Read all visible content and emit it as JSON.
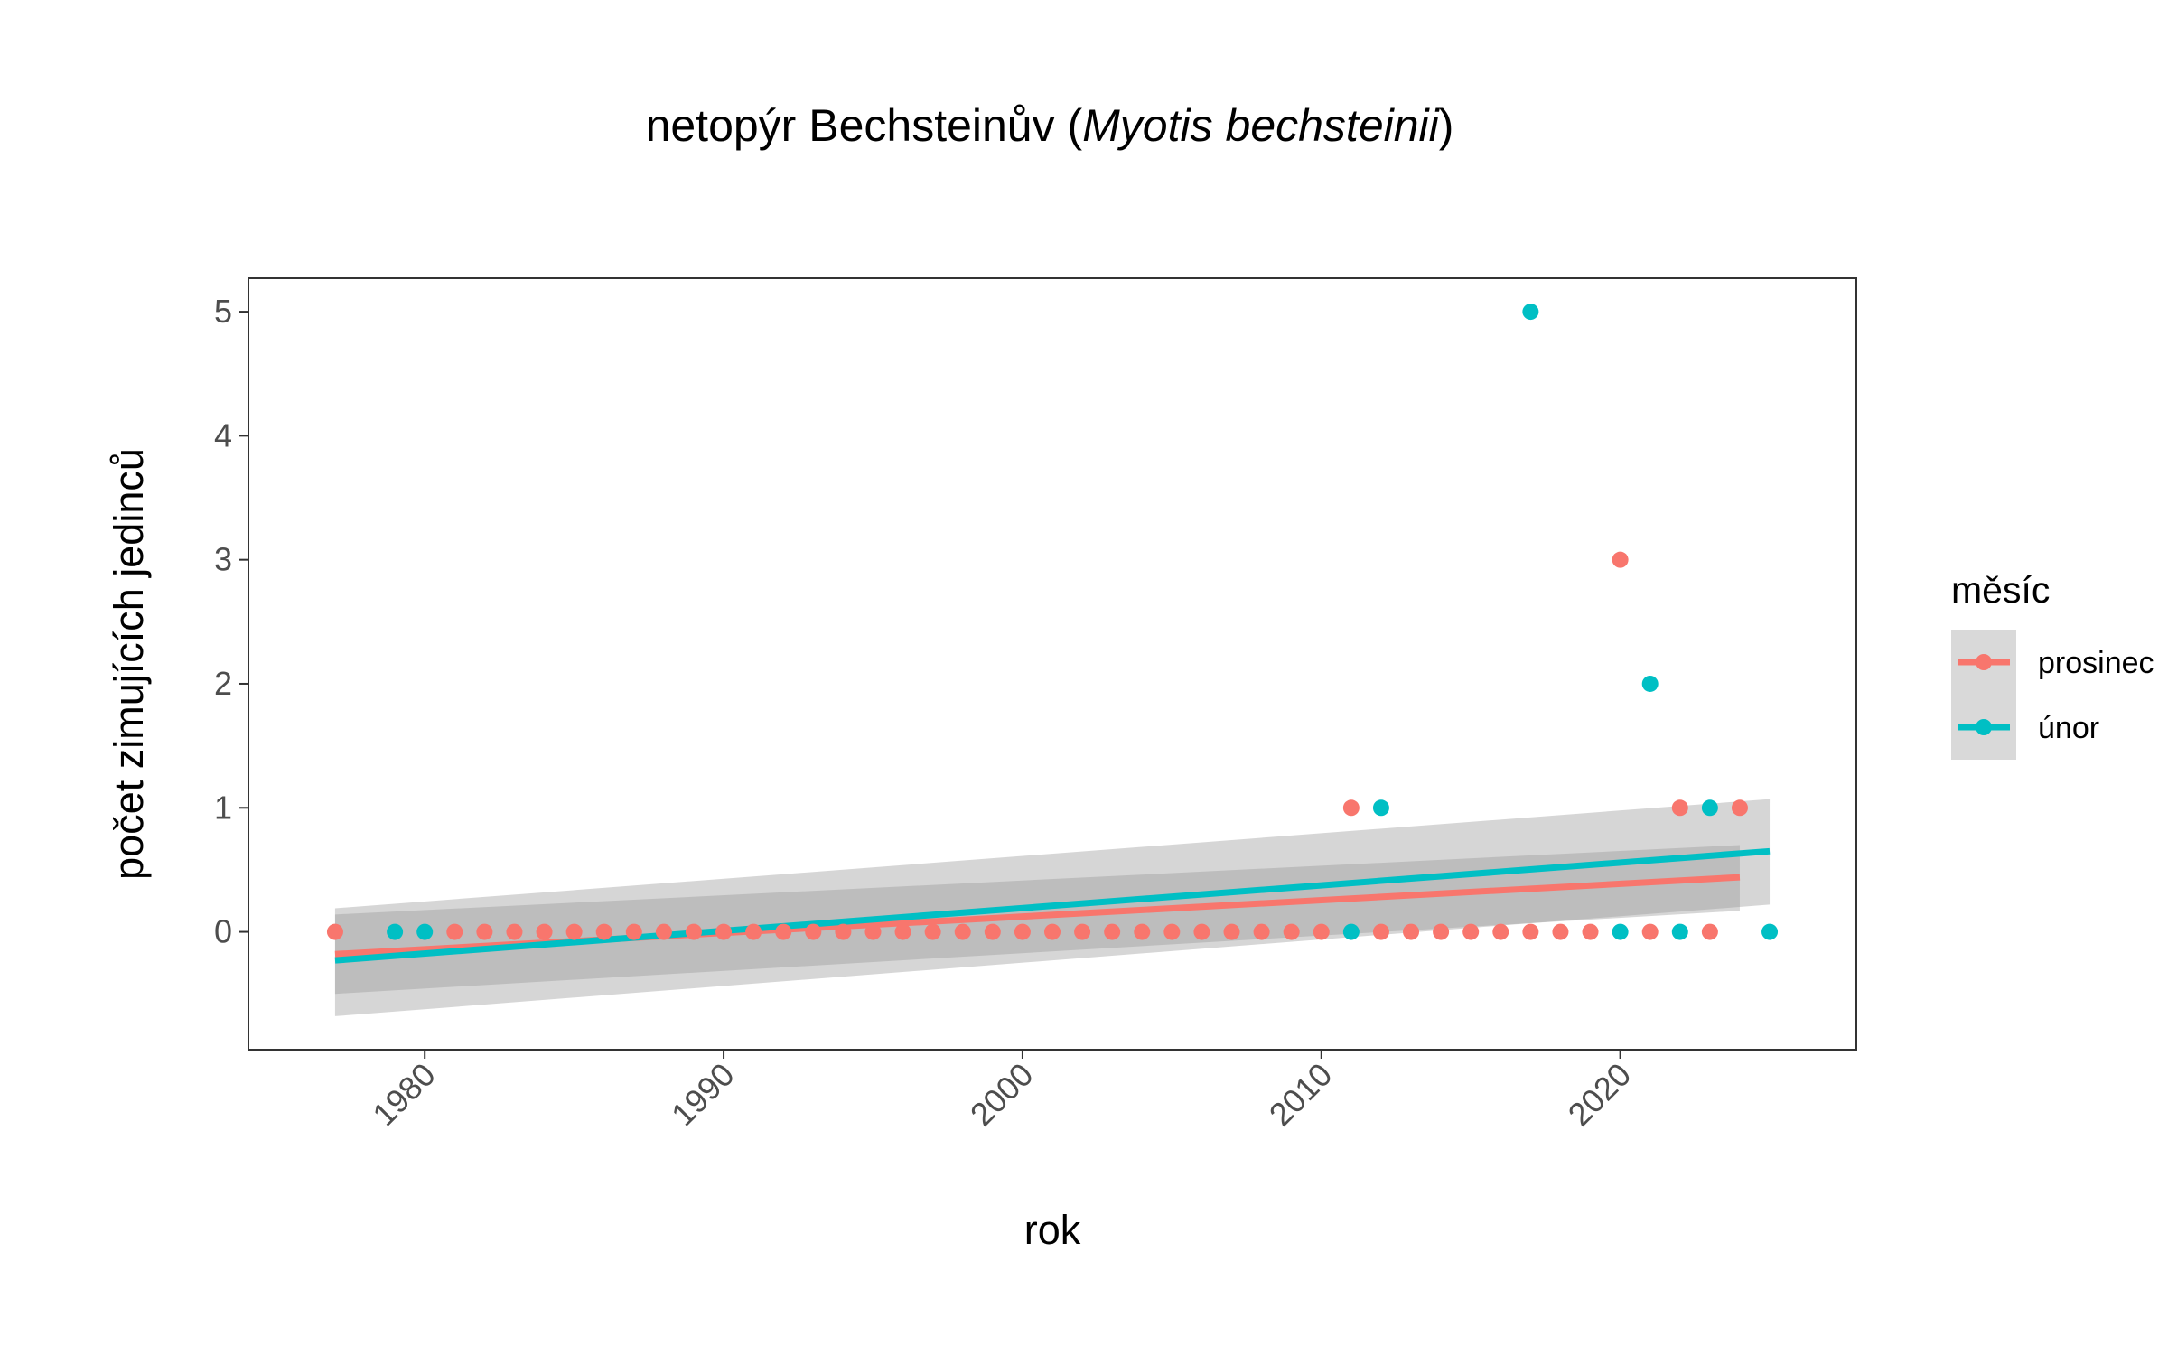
{
  "chart_data": {
    "type": "scatter",
    "title": {
      "prefix": "netopýr Bechsteinův (",
      "italic": "Myotis bechsteinii",
      "suffix": ")"
    },
    "xlabel": "rok",
    "ylabel": "počet zimujících jedinců",
    "xlim": [
      1974.1,
      2027.9
    ],
    "ylim": [
      -0.95,
      5.27
    ],
    "x_ticks": [
      1980,
      1990,
      2000,
      2010,
      2020
    ],
    "x_tick_labels": [
      "1980",
      "1990",
      "2000",
      "2010",
      "2020"
    ],
    "y_ticks": [
      0,
      1,
      2,
      3,
      4,
      5
    ],
    "y_tick_labels": [
      "0",
      "1",
      "2",
      "3",
      "4",
      "5"
    ],
    "grid": false,
    "legend": {
      "title": "měsíc",
      "placement": "right",
      "entries": [
        "prosinec",
        "únor"
      ]
    },
    "series": [
      {
        "name": "prosinec",
        "color": "#F8766D",
        "points": [
          [
            1977,
            0
          ],
          [
            1981,
            0
          ],
          [
            1982,
            0
          ],
          [
            1983,
            0
          ],
          [
            1984,
            0
          ],
          [
            1985,
            0
          ],
          [
            1986,
            0
          ],
          [
            1987,
            0
          ],
          [
            1988,
            0
          ],
          [
            1989,
            0
          ],
          [
            1990,
            0
          ],
          [
            1991,
            0
          ],
          [
            1992,
            0
          ],
          [
            1993,
            0
          ],
          [
            1994,
            0
          ],
          [
            1995,
            0
          ],
          [
            1996,
            0
          ],
          [
            1997,
            0
          ],
          [
            1998,
            0
          ],
          [
            1999,
            0
          ],
          [
            2000,
            0
          ],
          [
            2001,
            0
          ],
          [
            2002,
            0
          ],
          [
            2003,
            0
          ],
          [
            2004,
            0
          ],
          [
            2005,
            0
          ],
          [
            2006,
            0
          ],
          [
            2007,
            0
          ],
          [
            2008,
            0
          ],
          [
            2009,
            0
          ],
          [
            2010,
            0
          ],
          [
            2011,
            1
          ],
          [
            2012,
            0
          ],
          [
            2013,
            0
          ],
          [
            2014,
            0
          ],
          [
            2015,
            0
          ],
          [
            2016,
            0
          ],
          [
            2017,
            0
          ],
          [
            2018,
            0
          ],
          [
            2019,
            0
          ],
          [
            2020,
            3
          ],
          [
            2021,
            0
          ],
          [
            2022,
            1
          ],
          [
            2023,
            0
          ],
          [
            2024,
            1
          ]
        ],
        "trend": {
          "x": [
            1977,
            2024
          ],
          "fit": [
            -0.18,
            0.44
          ],
          "lower": [
            -0.5,
            0.17
          ],
          "upper": [
            0.14,
            0.7
          ]
        }
      },
      {
        "name": "únor",
        "color": "#00BFC4",
        "points": [
          [
            1979,
            0
          ],
          [
            1980,
            0
          ],
          [
            2011,
            0
          ],
          [
            2012,
            1
          ],
          [
            2017,
            5
          ],
          [
            2020,
            0
          ],
          [
            2021,
            2
          ],
          [
            2022,
            0
          ],
          [
            2023,
            1
          ],
          [
            2025,
            0
          ]
        ],
        "trend": {
          "x": [
            1977,
            2025
          ],
          "fit": [
            -0.23,
            0.65
          ],
          "lower": [
            -0.68,
            0.22
          ],
          "upper": [
            0.19,
            1.07
          ]
        }
      }
    ]
  }
}
